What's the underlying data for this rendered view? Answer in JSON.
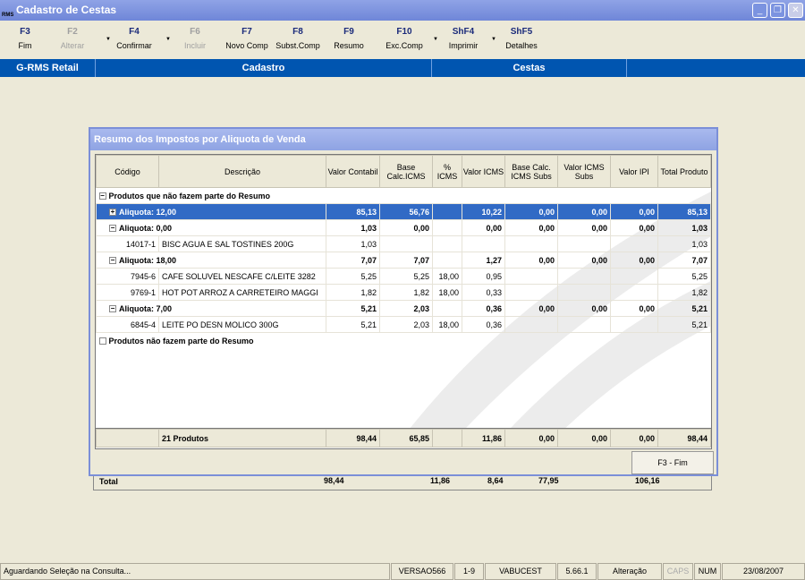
{
  "window": {
    "title": "Cadastro de Cestas",
    "icon": "RMS"
  },
  "toolbar": [
    {
      "key": "F3",
      "label": "Fim",
      "enabled": true
    },
    {
      "key": "F2",
      "label": "Alterar",
      "enabled": false
    },
    {
      "key": "F4",
      "label": "Confirmar",
      "enabled": true
    },
    {
      "key": "F6",
      "label": "Incluir",
      "enabled": false
    },
    {
      "key": "F7",
      "label": "Novo Comp",
      "enabled": true
    },
    {
      "key": "F8",
      "label": "Subst.Comp",
      "enabled": true
    },
    {
      "key": "F9",
      "label": "Resumo",
      "enabled": true
    },
    {
      "key": "F10",
      "label": "Exc.Comp",
      "enabled": true
    },
    {
      "key": "ShF4",
      "label": "Imprimir",
      "enabled": true
    },
    {
      "key": "ShF5",
      "label": "Detalhes",
      "enabled": true
    }
  ],
  "breadcrumb": {
    "app": "G-RMS Retail",
    "module": "Cadastro",
    "screen": "Cestas"
  },
  "background_total": {
    "label": "Total",
    "values": [
      "98,44",
      "11,86",
      "8,64",
      "77,95",
      "106,16"
    ]
  },
  "dialog": {
    "title": "Resumo dos Impostos por Aliquota de Venda",
    "columns": [
      "Código",
      "Descrição",
      "Valor Contabil",
      "Base Calc.ICMS",
      "% ICMS",
      "Valor ICMS",
      "Base Calc. ICMS Subs",
      "Valor ICMS Subs",
      "Valor IPI",
      "Total Produto"
    ],
    "rows": [
      {
        "type": "group",
        "label": "Produtos que não fazem parte do Resumo",
        "toggle": "−"
      },
      {
        "type": "sub",
        "selected": true,
        "toggle": "+",
        "label": "Aliquota: 12,00",
        "values": [
          "85,13",
          "56,76",
          "",
          "10,22",
          "0,00",
          "0,00",
          "0,00",
          "85,13"
        ]
      },
      {
        "type": "sub",
        "toggle": "−",
        "label": "Aliquota: 0,00",
        "values": [
          "1,03",
          "0,00",
          "",
          "0,00",
          "0,00",
          "0,00",
          "0,00",
          "1,03"
        ]
      },
      {
        "type": "item",
        "code": "14017-1",
        "desc": "BISC AGUA E SAL TOSTINES 200G",
        "values": [
          "1,03",
          "",
          "",
          "",
          "",
          "",
          "",
          "1,03"
        ]
      },
      {
        "type": "sub",
        "toggle": "−",
        "label": "Aliquota: 18,00",
        "values": [
          "7,07",
          "7,07",
          "",
          "1,27",
          "0,00",
          "0,00",
          "0,00",
          "7,07"
        ]
      },
      {
        "type": "item",
        "code": "7945-6",
        "desc": "CAFE SOLUVEL NESCAFE C/LEITE 3282",
        "values": [
          "5,25",
          "5,25",
          "18,00",
          "0,95",
          "",
          "",
          "",
          "5,25"
        ]
      },
      {
        "type": "item",
        "code": "9769-1",
        "desc": "HOT POT ARROZ A CARRETEIRO MAGGI",
        "values": [
          "1,82",
          "1,82",
          "18,00",
          "0,33",
          "",
          "",
          "",
          "1,82"
        ]
      },
      {
        "type": "sub",
        "toggle": "−",
        "label": "Aliquota: 7,00",
        "values": [
          "5,21",
          "2,03",
          "",
          "0,36",
          "0,00",
          "0,00",
          "0,00",
          "5,21"
        ]
      },
      {
        "type": "item",
        "code": "6845-4",
        "desc": "LEITE PO DESN MOLICO 300G",
        "values": [
          "5,21",
          "2,03",
          "18,00",
          "0,36",
          "",
          "",
          "",
          "5,21"
        ]
      },
      {
        "type": "group",
        "label": "Produtos não fazem parte do Resumo",
        "toggle": ""
      }
    ],
    "footer": {
      "label": "21 Produtos",
      "values": [
        "98,44",
        "65,85",
        "",
        "11,86",
        "0,00",
        "0,00",
        "0,00",
        "98,44"
      ]
    },
    "close_button": "F3 - Fim"
  },
  "status": [
    "Aguardando Seleção na Consulta...",
    "VERSAO566",
    "1-9",
    "VABUCEST",
    "5.66.1",
    "Alteração",
    "CAPS",
    "NUM",
    "23/08/2007"
  ]
}
